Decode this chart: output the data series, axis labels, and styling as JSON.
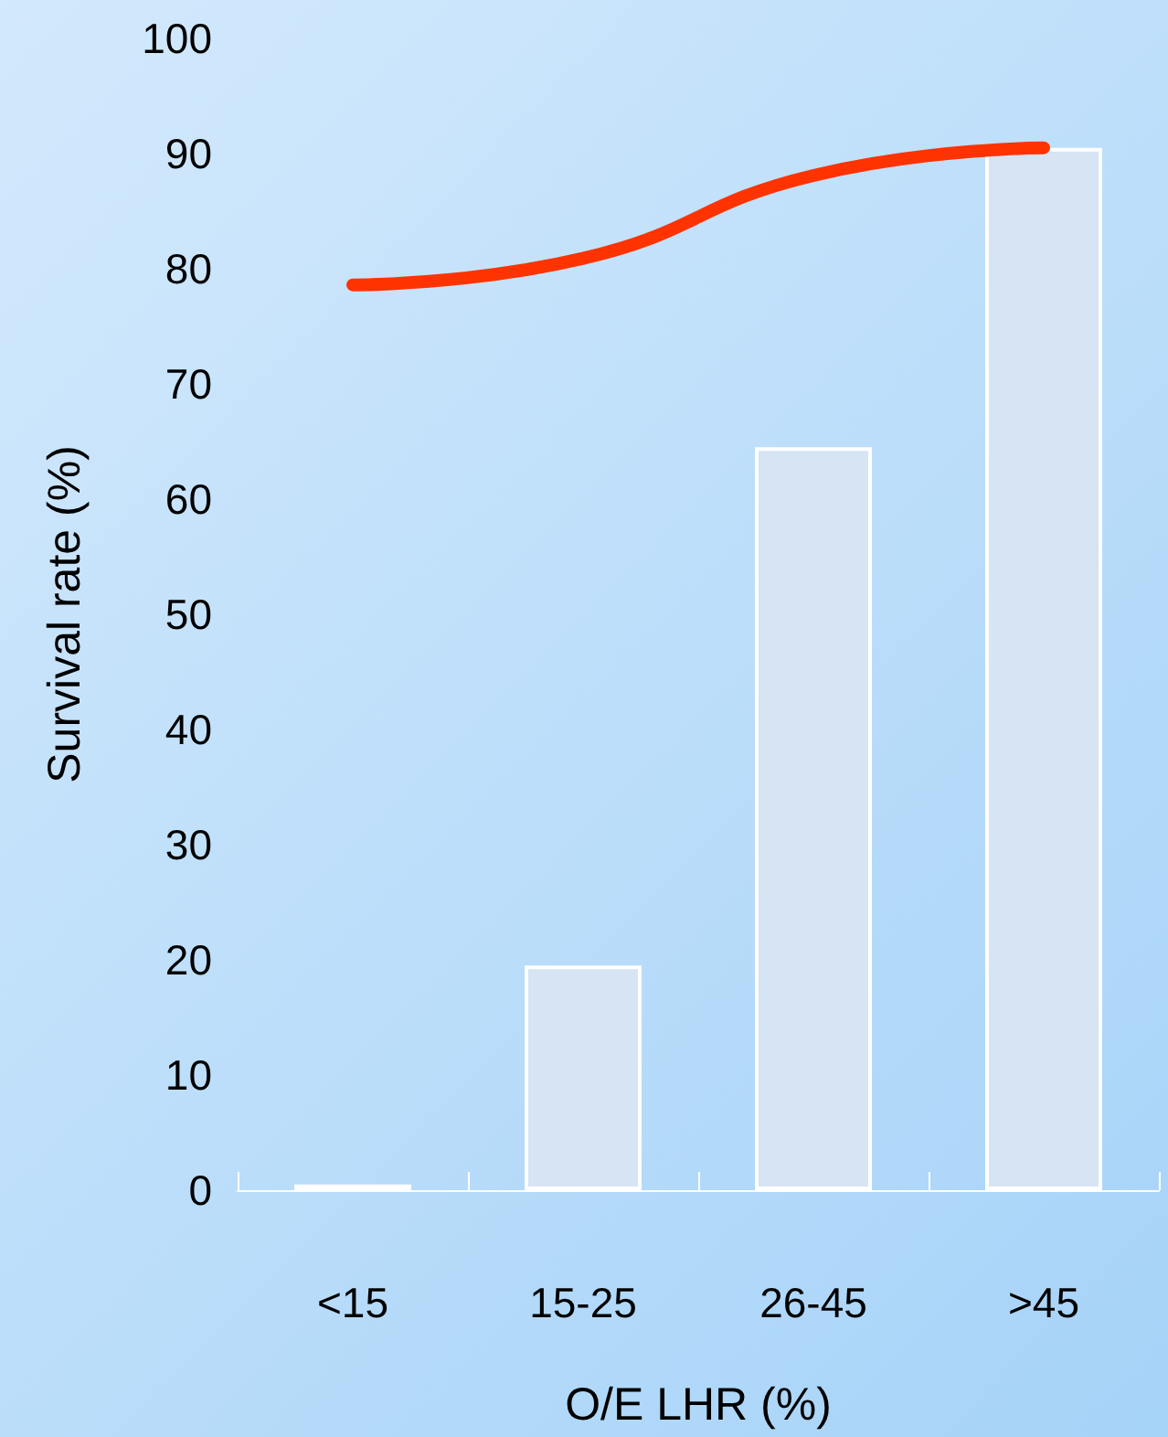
{
  "chart_data": {
    "type": "bar",
    "xlabel": "O/E LHR (%)",
    "ylabel": "Survival rate (%)",
    "categories": [
      "<15",
      "15-25",
      "26-45",
      ">45"
    ],
    "series": [
      {
        "values": [
          0.5,
          19.5,
          64.5,
          90.5
        ],
        "colors": [
          "#ffffff",
          "#d6e4f4",
          "#d6e4f4",
          "#d6e4f4"
        ]
      },
      {
        "type": "line",
        "color": "#ff3300",
        "values": [
          78.6,
          80.9,
          88.1,
          90.5
        ]
      }
    ],
    "ylim": [
      0,
      100
    ],
    "yticks": [
      0,
      10,
      20,
      30,
      40,
      50,
      60,
      70,
      80,
      90,
      100
    ],
    "grid": false
  }
}
